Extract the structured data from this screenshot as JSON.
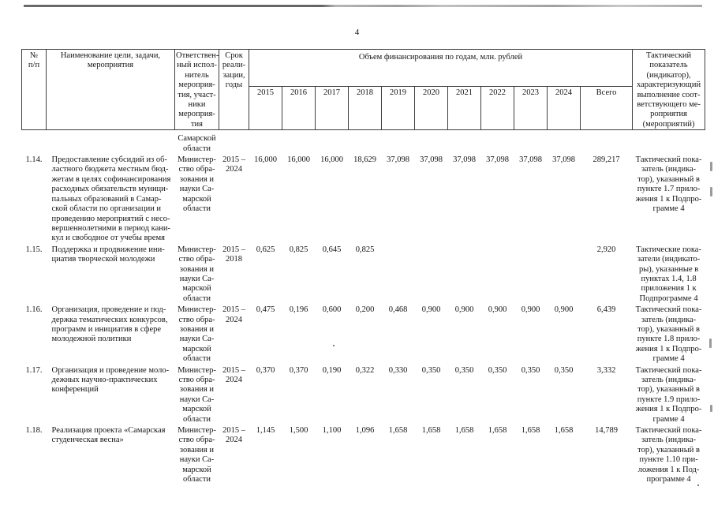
{
  "page_number": "4",
  "table": {
    "header": {
      "num": "№\nп/п",
      "name": "Наименование цели, задачи,\nмероприятия",
      "responsible": "Ответствен-\nный испол-\nнитель\nмероприя-\nтия, участ-\nники\nмероприя-\nтия",
      "term": "Срок\nреали-\nзации,\nгоды",
      "funding_group": "Объем финансирования по годам, млн. рублей",
      "years": [
        "2015",
        "2016",
        "2017",
        "2018",
        "2019",
        "2020",
        "2021",
        "2022",
        "2023",
        "2024"
      ],
      "total": "Всего",
      "indicator": "Тактический\nпоказатель\n(индикатор),\nхарактеризующий\nвыполнение соот-\nветствующего ме-\nроприятия\n(мероприятий)"
    },
    "continuation_responsible": "Самарской\nобласти",
    "rows": [
      {
        "num": "1.14.",
        "name": "Предоставление субсидий из об-\nластного бюджета местным бюд-\nжетам в целях софинансирования\nрасходных обязательств муници-\nпальных образований в Самар-\nской области по организации и\nпроведению мероприятий с несо-\nвершеннолетними в период кани-\nкул и свободное от учебы время",
        "responsible": "Министер-\nство обра-\nзования и\nнауки Са-\nмарской\nобласти",
        "term": "2015 –\n2024",
        "values": [
          "16,000",
          "16,000",
          "16,000",
          "18,629",
          "37,098",
          "37,098",
          "37,098",
          "37,098",
          "37,098",
          "37,098"
        ],
        "total": "289,217",
        "indicator": "Тактический пока-\nзатель (индика-\nтор), указанный в\nпункте 1.7 прило-\nжения 1 к Подпро-\nграмме 4"
      },
      {
        "num": "1.15.",
        "name": "Поддержка и продвижение ини-\nциатив творческой молодежи",
        "responsible": "Министер-\nство обра-\nзования и\nнауки Са-\nмарской\nобласти",
        "term": "2015 –\n2018",
        "values": [
          "0,625",
          "0,825",
          "0,645",
          "0,825",
          "",
          "",
          "",
          "",
          "",
          ""
        ],
        "total": "2,920",
        "indicator": "Тактические пока-\nзатели (индикато-\nры), указанные в\nпунктах 1.4, 1.8\nприложения 1 к\nПодпрограмме 4"
      },
      {
        "num": "1.16.",
        "name": "Организация, проведение и под-\nдержка тематических конкурсов,\nпрограмм и инициатив в сфере\nмолодежной политики",
        "responsible": "Министер-\nство обра-\nзования и\nнауки Са-\nмарской\nобласти",
        "term": "2015 –\n2024",
        "values": [
          "0,475",
          "0,196",
          "0,600",
          "0,200",
          "0,468",
          "0,900",
          "0,900",
          "0,900",
          "0,900",
          "0,900"
        ],
        "total": "6,439",
        "indicator": "Тактический пока-\nзатель (индика-\nтор), указанный в\nпункте 1.8 прило-\nжения 1 к Подпро-\nграмме 4"
      },
      {
        "num": "1.17.",
        "name": "Организация и проведение моло-\nдежных научно-практических\nконференций",
        "responsible": "Министер-\nство обра-\nзования и\nнауки Са-\nмарской\nобласти",
        "term": "2015 –\n2024",
        "values": [
          "0,370",
          "0,370",
          "0,190",
          "0,322",
          "0,330",
          "0,350",
          "0,350",
          "0,350",
          "0,350",
          "0,350"
        ],
        "total": "3,332",
        "indicator": "Тактический пока-\nзатель (индика-\nтор), указанный в\nпункте 1.9 прило-\nжения 1 к Подпро-\nграмме 4"
      },
      {
        "num": "1.18.",
        "name": "Реализация проекта «Самарская\nстуденческая весна»",
        "responsible": "Министер-\nство обра-\nзования и\nнауки Са-\nмарской\nобласти",
        "term": "2015 –\n2024",
        "values": [
          "1,145",
          "1,500",
          "1,100",
          "1,096",
          "1,658",
          "1,658",
          "1,658",
          "1,658",
          "1,658",
          "1,658"
        ],
        "total": "14,789",
        "indicator": "Тактический пока-\nзатель (индика-\nтор), указанный в\nпункте 1.10 при-\nложения 1 к Под-\nпрограмме 4"
      }
    ]
  }
}
